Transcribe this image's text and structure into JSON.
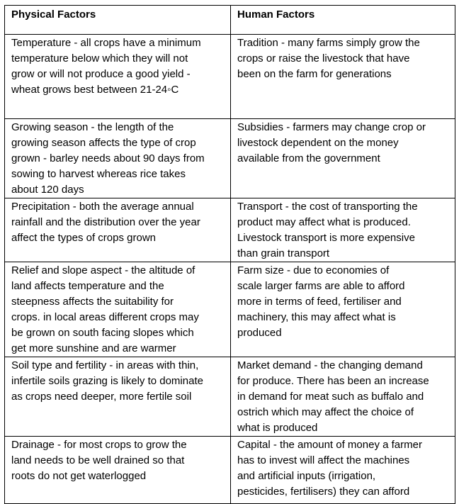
{
  "headers": [
    "Physical Factors",
    "Human Factors"
  ],
  "rows": [
    [
      "Temperature - all crops have a minimum\ntemperature below which they will not\ngrow or will not produce a good yield -\nwheat grows best between 21-24◦C",
      "Tradition - many farms simply grow the\ncrops or raise the livestock that have\nbeen on the farm for generations"
    ],
    [
      "Growing season - the length of the\ngrowing season affects the type of crop\ngrown - barley needs about 90 days from\nsowing to harvest whereas rice takes\nabout 120 days",
      "Subsidies - farmers may change crop or\nlivestock dependent on the money\navailable from the government"
    ],
    [
      "Precipitation - both the average annual\nrainfall and the distribution over the year\naffect the types of crops grown",
      "Transport - the cost of transporting the\nproduct may affect what is produced.\nLivestock transport is more expensive\nthan grain transport"
    ],
    [
      "Relief and slope aspect - the altitude of\nland affects temperature and the\nsteepness affects the suitability for\ncrops. in local areas different crops may\nbe grown on south facing slopes which\nget more sunshine and are warmer",
      "Farm size - due to economies of\nscale larger farms are able to afford\nmore in terms of feed, fertiliser and\nmachinery, this may affect what is\nproduced"
    ],
    [
      "Soil type and fertility - in areas with thin,\ninfertile soils grazing is likely to dominate\nas crops need deeper, more fertile soil",
      "Market demand - the changing demand\nfor produce. There has been an increase\nin demand for meat such as buffalo and\nostrich which may affect the choice of\nwhat is produced"
    ],
    [
      "Drainage - for most crops to grow the\nland needs to be well drained so that\nroots do not get waterlogged",
      "Capital - the amount of money a farmer\nhas to invest will affect the machines\nand artificial inputs (irrigation,\npesticides, fertilisers) they can afford"
    ]
  ]
}
